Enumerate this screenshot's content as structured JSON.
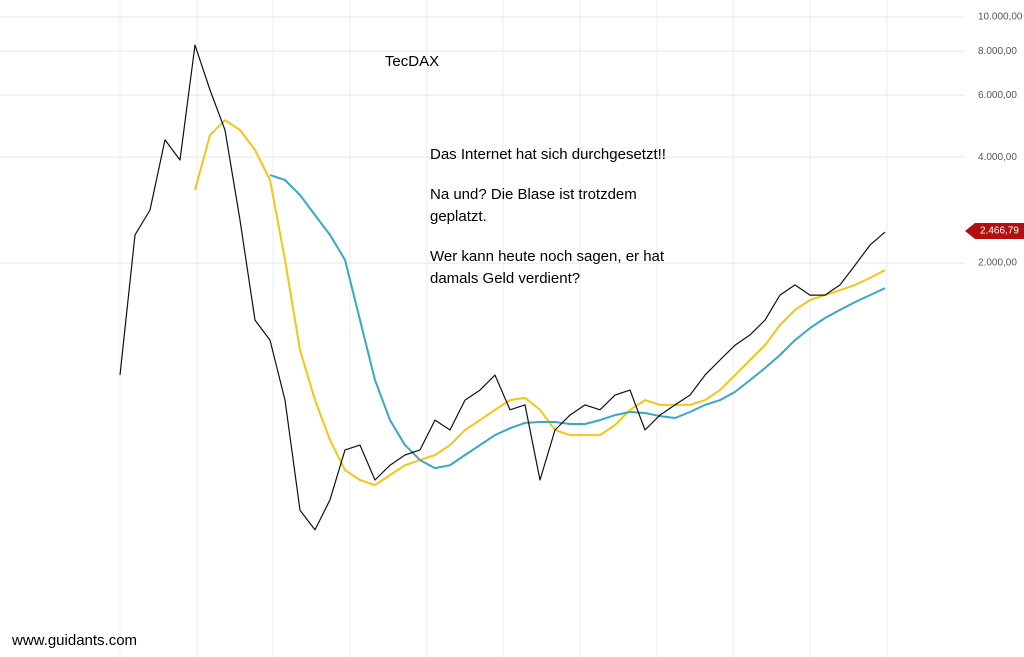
{
  "chart_data": {
    "type": "line",
    "title": "TecDAX",
    "annotation": [
      "Das Internet hat sich durchgesetzt!!",
      "Na und? Die Blase ist trotzdem",
      "geplatzt.",
      "Wer kann heute noch sagen, er hat",
      "damals Geld verdient?"
    ],
    "source": "www.guidants.com",
    "log_scale": true,
    "grid": true,
    "ylim": [
      152,
      11180
    ],
    "yticks": [
      {
        "value": 10000,
        "label": "10.000,00"
      },
      {
        "value": 8000,
        "label": "8.000,00"
      },
      {
        "value": 6000,
        "label": "6.000,00"
      },
      {
        "value": 4000,
        "label": "4.000,00"
      },
      {
        "value": 2000,
        "label": "2.000,00"
      }
    ],
    "last_price": {
      "value": 2466.79,
      "label": "2.466,79",
      "color": "#b01010"
    },
    "series": [
      {
        "color": "#111111",
        "values": [
          961,
          2404,
          2830,
          4477,
          3926,
          8325,
          6207,
          4775,
          2650,
          1377,
          1208,
          816,
          397,
          349,
          425,
          589,
          608,
          484,
          533,
          570,
          589,
          716,
          671,
          816,
          871,
          961,
          766,
          791,
          484,
          671,
          740,
          791,
          766,
          843,
          871,
          671,
          740,
          791,
          843,
          961,
          1061,
          1169,
          1250,
          1377,
          1622,
          1734,
          1622,
          1622,
          1734,
          1972,
          2249,
          2449
        ]
      },
      {
        "color": "#f5c518",
        "values": [
          null,
          null,
          null,
          null,
          null,
          3228,
          4624,
          5093,
          4775,
          4190,
          3443,
          2042,
          1132,
          816,
          628,
          516,
          484,
          468,
          500,
          533,
          551,
          570,
          608,
          671,
          716,
          766,
          816,
          828,
          766,
          671,
          649,
          649,
          649,
          693,
          766,
          816,
          791,
          791,
          791,
          816,
          871,
          961,
          1061,
          1169,
          1334,
          1472,
          1571,
          1622,
          1675,
          1734,
          1815,
          1910
        ]
      },
      {
        "color": "#3aa6c8",
        "values": [
          null,
          null,
          null,
          null,
          null,
          null,
          null,
          null,
          null,
          null,
          3556,
          3443,
          3121,
          2738,
          2404,
          2042,
          1377,
          930,
          716,
          608,
          551,
          523,
          533,
          570,
          608,
          649,
          679,
          703,
          707,
          707,
          698,
          698,
          716,
          740,
          755,
          750,
          735,
          726,
          755,
          791,
          816,
          861,
          930,
          1007,
          1096,
          1208,
          1307,
          1396,
          1472,
          1549,
          1622,
          1698
        ]
      }
    ]
  }
}
